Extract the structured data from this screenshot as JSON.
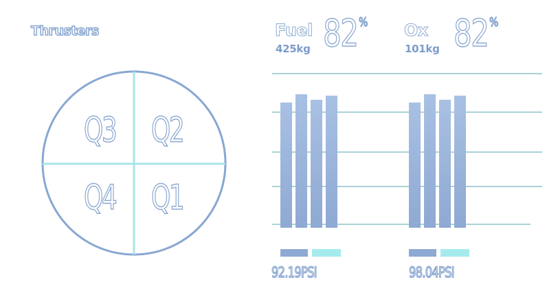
{
  "thrusters": {
    "title": "Thrusters",
    "quadrants": [
      {
        "id": "q3",
        "label": "Q3"
      },
      {
        "id": "q2",
        "label": "Q2"
      },
      {
        "id": "q4",
        "label": "Q4"
      },
      {
        "id": "q1",
        "label": "Q1"
      }
    ]
  },
  "tanks": [
    {
      "name": "Fuel",
      "mass": "425kg",
      "percent": "82",
      "percent_unit": "%",
      "pressure": "92.19PSI"
    },
    {
      "name": "Ox",
      "mass": "101kg",
      "percent": "82",
      "percent_unit": "%",
      "pressure": "98.04PSI"
    }
  ],
  "colors": {
    "bar": "#8ea9d3",
    "bar_light": "#a8c0e3",
    "accent_cyan": "#a5ebee",
    "grid": "#a9d3d7",
    "circle": "#88a7d2",
    "divider_cyan": "#a9e4e9"
  },
  "chart_data": {
    "type": "bar",
    "groups": [
      {
        "name": "Fuel",
        "values": [
          0.91,
          0.97,
          0.93,
          0.96
        ]
      },
      {
        "name": "Ox",
        "values": [
          0.91,
          0.97,
          0.93,
          0.96
        ]
      }
    ],
    "ylim": [
      0,
      1
    ],
    "grid": true
  }
}
